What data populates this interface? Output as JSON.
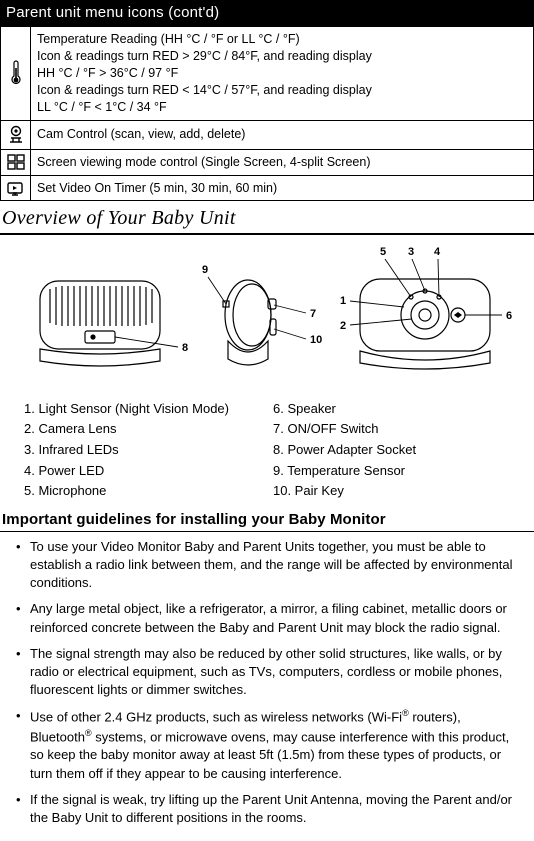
{
  "header": "Parent unit menu icons (cont'd)",
  "rows": [
    {
      "lines": [
        "Temperature Reading (HH °C / °F or LL °C / °F)",
        "Icon & readings turn RED > 29°C / 84°F, and reading display",
        "HH °C / °F > 36°C / 97 °F",
        "Icon & readings turn RED < 14°C / 57°F, and reading display",
        "LL °C / °F < 1°C / 34 °F"
      ]
    },
    {
      "lines": [
        "Cam Control (scan, view, add, delete)"
      ]
    },
    {
      "lines": [
        "Screen viewing mode control (Single Screen, 4-split Screen)"
      ]
    },
    {
      "lines": [
        "Set Video On Timer (5 min, 30 min, 60 min)"
      ]
    }
  ],
  "sectionTitle": "Overview of Your Baby Unit",
  "callouts": [
    "1",
    "2",
    "3",
    "4",
    "5",
    "6",
    "7",
    "8",
    "9",
    "10"
  ],
  "partsLeft": [
    "1.   Light Sensor (Night Vision Mode)",
    "2.   Camera Lens",
    "3.   Infrared LEDs",
    "4.   Power LED",
    "5.   Microphone"
  ],
  "partsRight": [
    "6.   Speaker",
    "7.   ON/OFF Switch",
    "8.   Power Adapter Socket",
    "9.   Temperature Sensor",
    "10. Pair Key"
  ],
  "subTitle": "Important guidelines for installing your Baby Monitor",
  "guidelines": [
    "To use your Video Monitor Baby and Parent Units together, you must be able to establish a radio link between them, and the range will be affected by environmental conditions.",
    "Any large metal object, like a refrigerator, a mirror, a filing cabinet, metallic doors or reinforced concrete between the Baby and Parent Unit may block the radio signal.",
    "The signal strength may also be reduced by other solid structures, like walls, or by radio or electrical equipment, such as TVs, computers, cordless or mobile phones, fluorescent lights or dimmer switches.",
    "Use of other 2.4 GHz products, such as wireless networks (Wi-Fi® routers), Bluetooth® systems, or microwave ovens, may cause interference with this product, so keep the baby monitor away at least 5ft (1.5m) from these types of products, or turn them off if they appear to be causing interference.",
    "If the signal is weak, try lifting up the Parent Unit Antenna, moving the Parent and/or the Baby Unit to different positions in the rooms."
  ],
  "colors": {
    "headerBg": "#000000",
    "headerFg": "#ffffff",
    "border": "#000000",
    "text": "#000000",
    "bg": "#ffffff"
  }
}
